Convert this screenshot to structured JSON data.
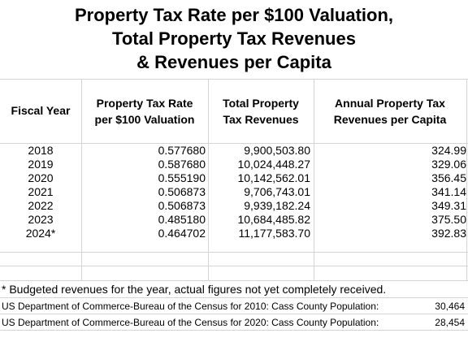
{
  "title": {
    "line1": "Property Tax Rate per $100 Valuation,",
    "line2": "Total Property Tax Revenues",
    "line3": "& Revenues per Capita"
  },
  "table": {
    "headers": {
      "year": "Fiscal Year",
      "rate": [
        "Property Tax Rate",
        "per $100 Valuation"
      ],
      "total": [
        "Total Property",
        "Tax Revenues"
      ],
      "per_capita": [
        "Annual Property Tax",
        "Revenues per Capita"
      ]
    },
    "rows": [
      {
        "year": "2018",
        "rate": "0.577680",
        "total": "9,900,503.80",
        "per_capita": "324.99"
      },
      {
        "year": "2019",
        "rate": "0.587680",
        "total": "10,024,448.27",
        "per_capita": "329.06"
      },
      {
        "year": "2020",
        "rate": "0.555190",
        "total": "10,142,562.01",
        "per_capita": "356.45"
      },
      {
        "year": "2021",
        "rate": "0.506873",
        "total": "9,706,743.01",
        "per_capita": "341.14"
      },
      {
        "year": "2022",
        "rate": "0.506873",
        "total": "9,939,182.24",
        "per_capita": "349.31"
      },
      {
        "year": "2023",
        "rate": "0.485180",
        "total": "10,684,485.82",
        "per_capita": "375.50"
      },
      {
        "year": "2024*",
        "rate": "0.464702",
        "total": "11,177,583.70",
        "per_capita": "392.83"
      }
    ]
  },
  "footnote": "* Budgeted revenues for the year, actual figures not yet completely received.",
  "sources": [
    {
      "text": "US Department of Commerce-Bureau of the Census for 2010:  Cass County Population:",
      "value": "30,464"
    },
    {
      "text": "US Department of Commerce-Bureau of the Census for 2020: Cass County Population:",
      "value": "28,454"
    }
  ]
}
